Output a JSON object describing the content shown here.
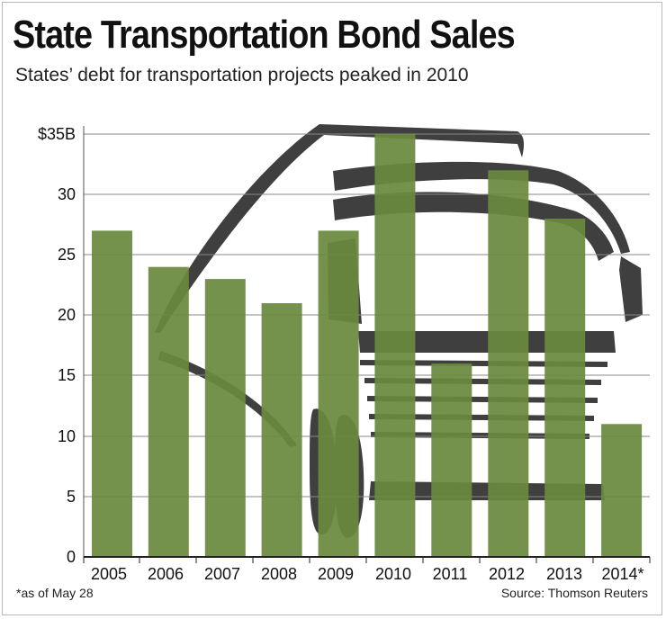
{
  "chart_data": {
    "type": "bar",
    "title": "State Transportation Bond Sales",
    "subtitle": "States’ debt for transportation projects peaked in 2010",
    "categories": [
      "2005",
      "2006",
      "2007",
      "2008",
      "2009",
      "2010",
      "2011",
      "2012",
      "2013",
      "2014*"
    ],
    "values": [
      27,
      24,
      23,
      21,
      27,
      35,
      16,
      32,
      28,
      11
    ],
    "unit": "billion dollars",
    "ylim": [
      0,
      35
    ],
    "yticks": [
      0,
      5,
      10,
      15,
      20,
      25,
      30,
      35
    ],
    "ytick_labels": [
      "0",
      "5",
      "10",
      "15",
      "20",
      "25",
      "30",
      "$35B"
    ],
    "xlabel": "",
    "ylabel": "",
    "grid": true,
    "footnote": "*as of May 28",
    "source": "Source: Thomson Reuters",
    "bar_color": "#6b8a3e",
    "background_illustration": "truck-illustration"
  }
}
